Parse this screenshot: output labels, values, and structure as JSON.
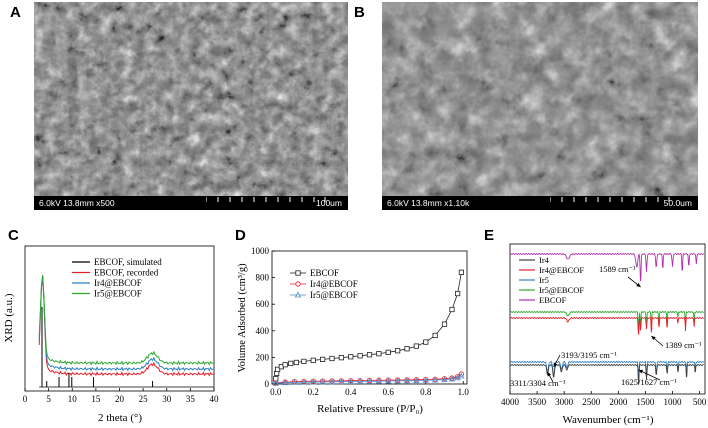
{
  "panels": {
    "A": {
      "letter": "A",
      "info": "6.0kV 13.8mm x500",
      "scale_label": "100um"
    },
    "B": {
      "letter": "B",
      "info": "6.0kV 13.8mm x1.10k",
      "scale_label": "50.0um"
    },
    "C": {
      "letter": "C"
    },
    "D": {
      "letter": "D"
    },
    "E": {
      "letter": "E"
    }
  },
  "chart_data": [
    {
      "type": "line",
      "ylabel": "XRD (a.u.)",
      "xlabel": "2 theta (°)",
      "xlim": [
        0,
        40
      ],
      "xticks": [
        0,
        5,
        10,
        15,
        20,
        25,
        30,
        35,
        40
      ],
      "legend_position": "top-right",
      "series": [
        {
          "name": "EBCOF, simulated",
          "color": "#000000"
        },
        {
          "name": "EBCOF, recorded",
          "color": "#e8202a"
        },
        {
          "name": "Ir4@EBCOF",
          "color": "#2f7fc1"
        },
        {
          "name": "Ir5@EBCOF",
          "color": "#2fa82f"
        }
      ],
      "simulated_peaks_2theta": [
        3.6,
        4.6,
        7.2,
        9.3,
        9.9,
        14.5,
        27.0
      ]
    },
    {
      "type": "line",
      "ylabel": "Volume Adsorbed (cm³/g)",
      "xlabel": "Relative Pressure (P/P₀)",
      "xlim": [
        -0.02,
        1.02
      ],
      "ylim": [
        0,
        1000
      ],
      "xticks": [
        0.0,
        0.2,
        0.4,
        0.6,
        0.8,
        1.0
      ],
      "yticks": [
        0,
        200,
        400,
        600,
        800,
        1000
      ],
      "legend_position": "top-left",
      "series": [
        {
          "name": "EBCOF",
          "color": "#222222",
          "marker": "square",
          "x": [
            0.0,
            0.005,
            0.01,
            0.03,
            0.05,
            0.08,
            0.11,
            0.15,
            0.2,
            0.25,
            0.3,
            0.35,
            0.4,
            0.45,
            0.5,
            0.55,
            0.6,
            0.65,
            0.7,
            0.75,
            0.8,
            0.85,
            0.9,
            0.94,
            0.97,
            0.99
          ],
          "y": [
            40,
            80,
            110,
            130,
            145,
            155,
            162,
            170,
            178,
            185,
            192,
            198,
            205,
            212,
            220,
            228,
            238,
            250,
            265,
            285,
            315,
            365,
            450,
            560,
            680,
            840
          ]
        },
        {
          "name": "Ir4@EBCOF",
          "color": "#e8202a",
          "marker": "circle",
          "x": [
            0.0,
            0.05,
            0.1,
            0.15,
            0.2,
            0.25,
            0.3,
            0.35,
            0.4,
            0.45,
            0.5,
            0.55,
            0.6,
            0.65,
            0.7,
            0.75,
            0.8,
            0.85,
            0.9,
            0.94,
            0.97,
            0.99
          ],
          "y": [
            8,
            15,
            18,
            20,
            21,
            22,
            23,
            24,
            25,
            26,
            27,
            28,
            29,
            30,
            31,
            32,
            34,
            36,
            40,
            45,
            55,
            75
          ]
        },
        {
          "name": "Ir5@EBCOF",
          "color": "#4a8fd0",
          "marker": "triangle",
          "x": [
            0.0,
            0.05,
            0.1,
            0.15,
            0.2,
            0.25,
            0.3,
            0.35,
            0.4,
            0.45,
            0.5,
            0.55,
            0.6,
            0.65,
            0.7,
            0.75,
            0.8,
            0.85,
            0.9,
            0.94,
            0.97,
            0.99
          ],
          "y": [
            5,
            10,
            12,
            13,
            14,
            15,
            16,
            17,
            18,
            19,
            20,
            21,
            22,
            23,
            24,
            25,
            27,
            29,
            32,
            38,
            46,
            60
          ]
        }
      ]
    },
    {
      "type": "line",
      "xlabel": "Wavenumber (cm⁻¹)",
      "xlim": [
        4000,
        400
      ],
      "xticks": [
        4000,
        3500,
        3000,
        2500,
        2000,
        1500,
        1000,
        500
      ],
      "legend_position": "top-left",
      "series": [
        {
          "name": "Ir4",
          "color": "#404040"
        },
        {
          "name": "Ir4@EBCOF",
          "color": "#e8202a"
        },
        {
          "name": "Ir5",
          "color": "#2f7fc1"
        },
        {
          "name": "Ir5@EBCOF",
          "color": "#2fa82f"
        },
        {
          "name": "EBCOF",
          "color": "#b030b0"
        }
      ],
      "annotations": [
        {
          "label": "1589 cm⁻¹",
          "x": 1589
        },
        {
          "label": "1389 cm⁻¹",
          "x": 1389
        },
        {
          "label": "3193/3195 cm⁻¹",
          "x": 3194
        },
        {
          "label": "3311/3304 cm⁻¹",
          "x": 3308
        },
        {
          "label": "1625/1627 cm⁻¹",
          "x": 1626
        }
      ]
    }
  ]
}
